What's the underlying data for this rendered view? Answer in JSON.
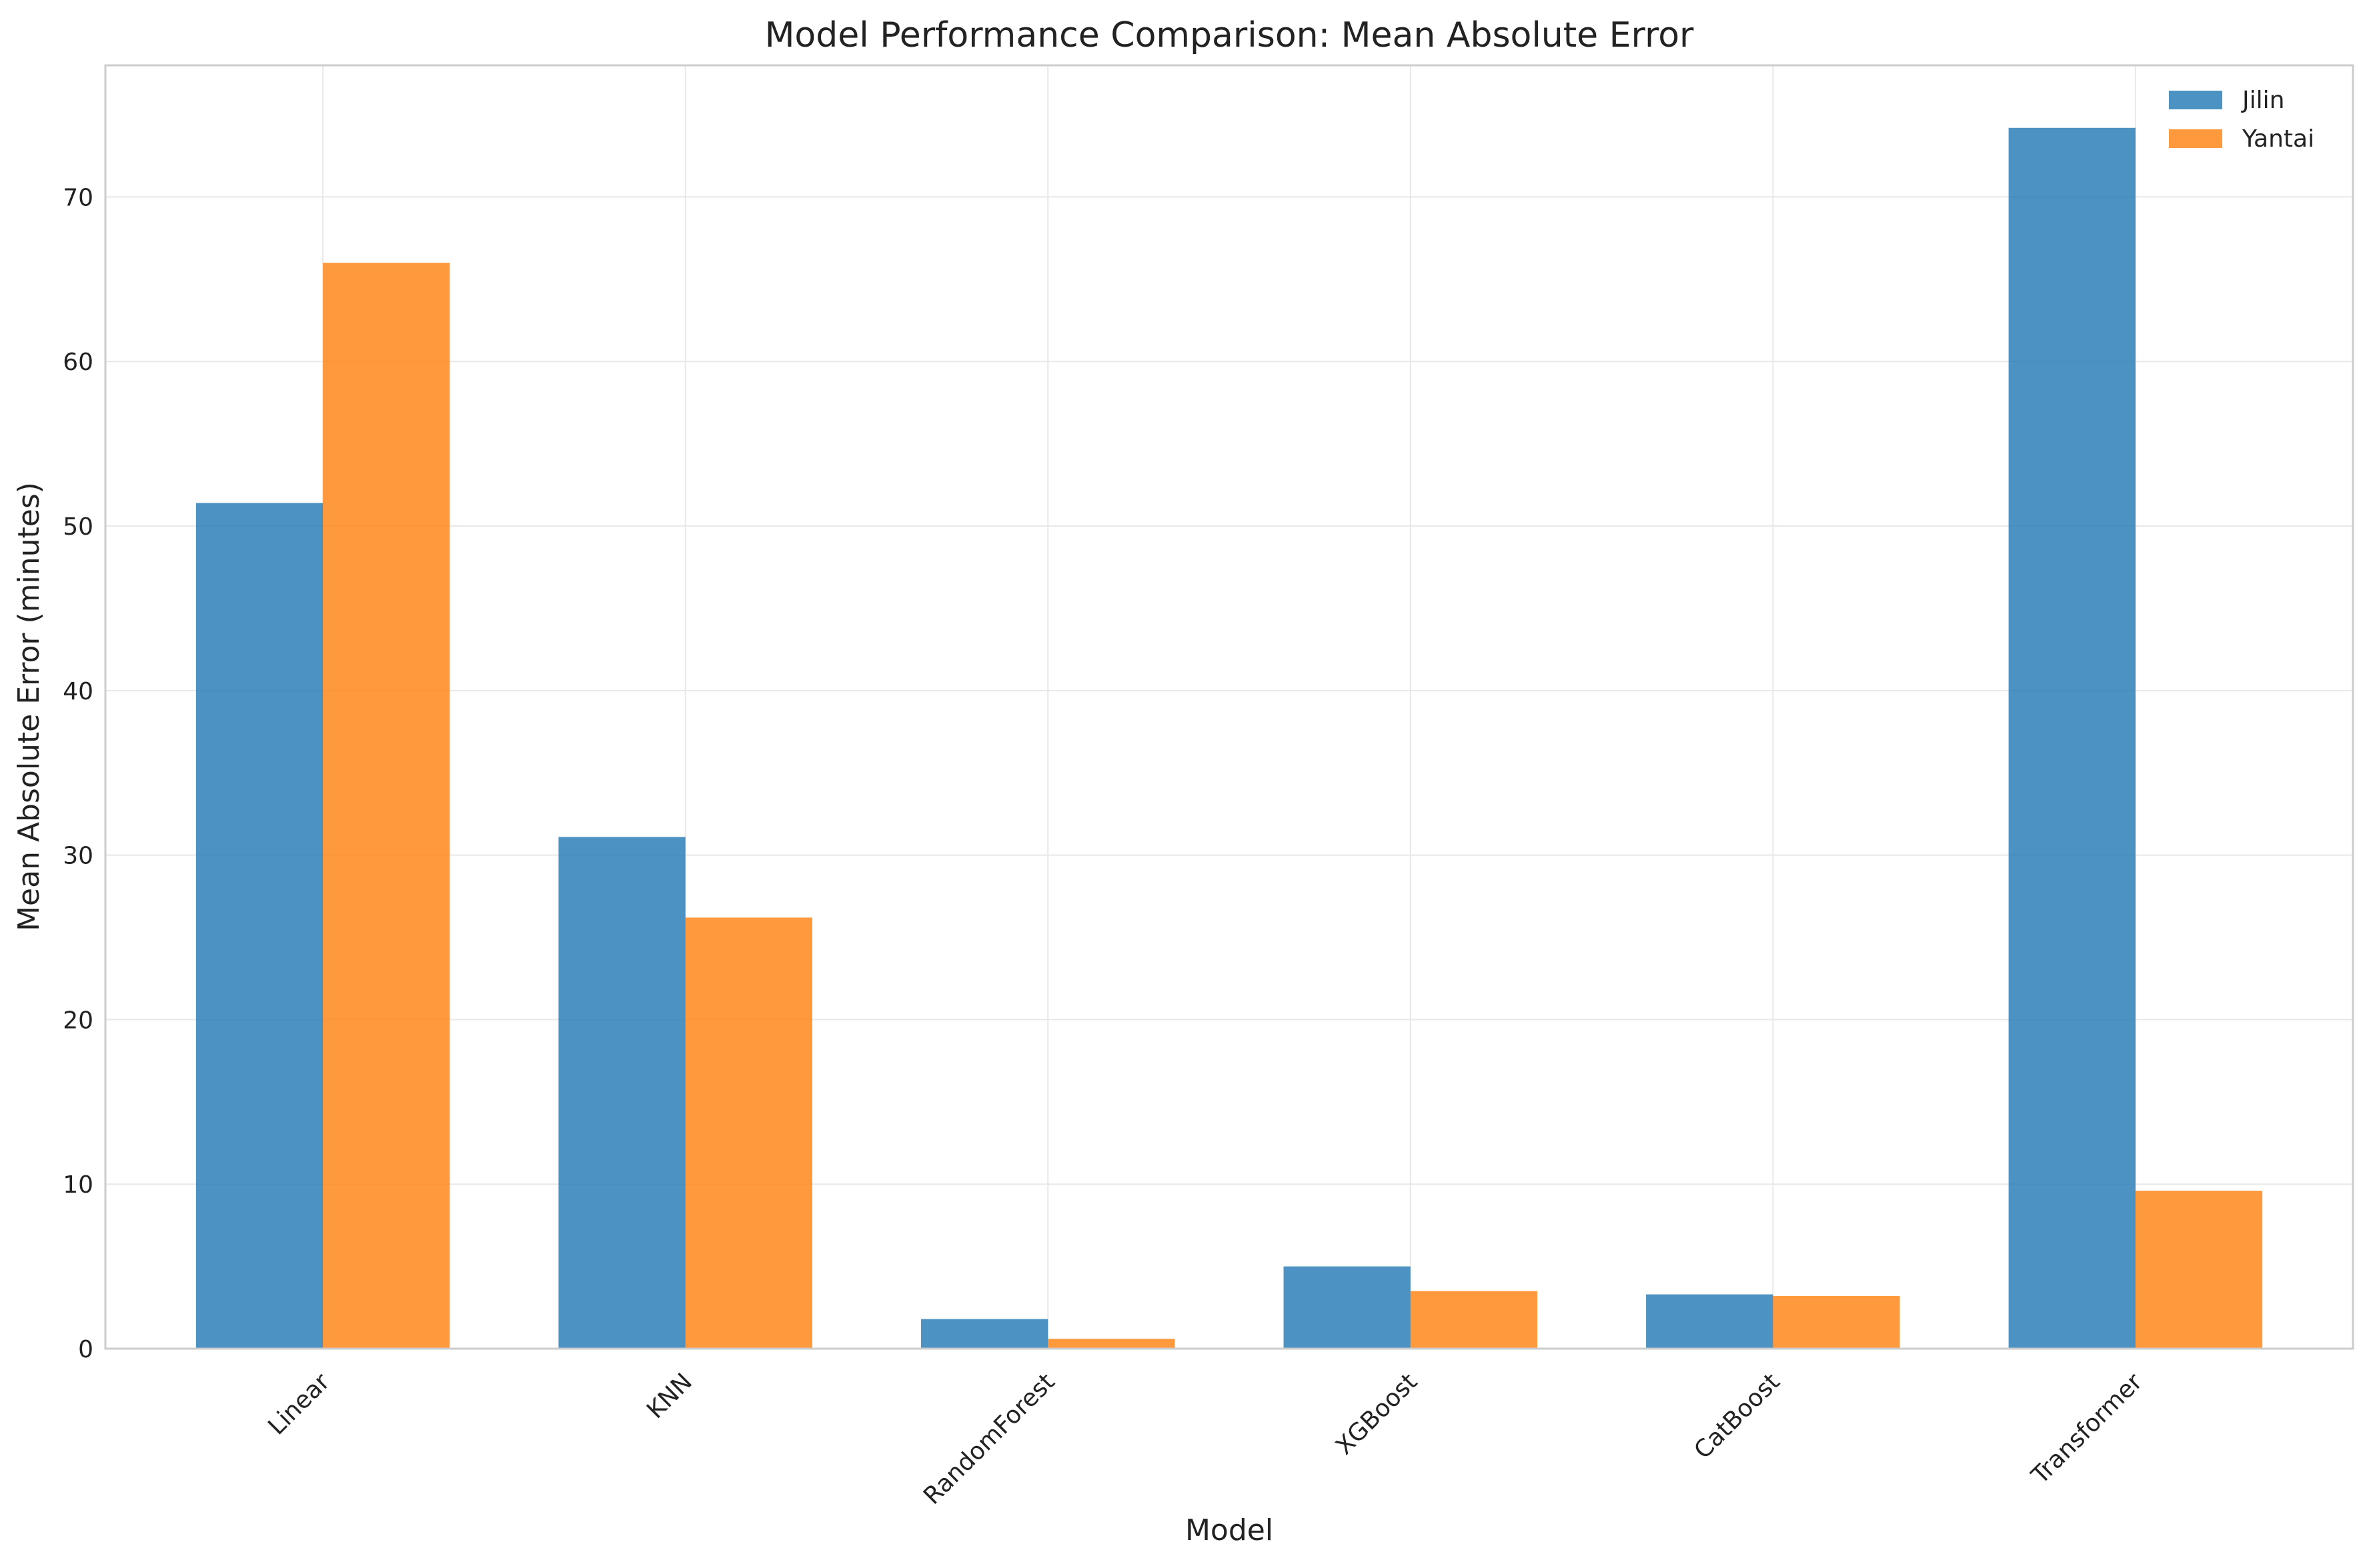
{
  "chart_data": {
    "type": "bar",
    "title": "Model Performance Comparison: Mean Absolute Error",
    "xlabel": "Model",
    "ylabel": "Mean Absolute Error (minutes)",
    "categories": [
      "Linear",
      "KNN",
      "RandomForest",
      "XGBoost",
      "CatBoost",
      "Transformer"
    ],
    "series": [
      {
        "name": "Jilin",
        "color": "#1f77b4",
        "values": [
          51.4,
          31.1,
          1.8,
          5.0,
          3.3,
          74.2
        ]
      },
      {
        "name": "Yantai",
        "color": "#ff7f0e",
        "values": [
          66.0,
          26.2,
          0.6,
          3.5,
          3.2,
          9.6
        ]
      }
    ],
    "ylim": [
      0,
      78
    ],
    "yticks": [
      0,
      10,
      20,
      30,
      40,
      50,
      60,
      70
    ],
    "grid": true,
    "legend_position": "top-right"
  }
}
